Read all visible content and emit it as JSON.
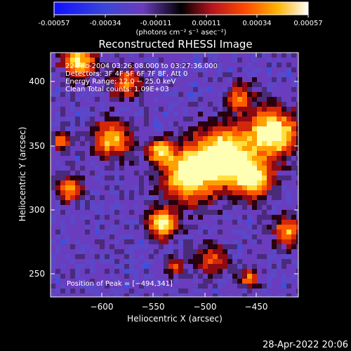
{
  "colorbar": {
    "ticks": [
      "-0.00057",
      "-0.00034",
      "-0.00011",
      "0.00011",
      "0.00034",
      "0.00057"
    ],
    "units": "(photons cm⁻² s⁻¹ asec⁻²)"
  },
  "plot": {
    "title": "Reconstructed RHESSI Image",
    "xlabel": "Heliocentric X (arcsec)",
    "ylabel": "Heliocentric Y (arcsec)",
    "xticks": [
      "−600",
      "−550",
      "−500",
      "−450"
    ],
    "yticks": [
      "400",
      "350",
      "300",
      "250"
    ],
    "annotations": [
      "22-Feb-2004 03:26:08.000 to 03:27:36.000",
      "Detectors: 3F 4F 5F 6F 7F 8F, Att 0",
      "Energy Range: 12.0 − 25.0 keV",
      "Clean     Total counts: 1.09E+03"
    ],
    "peak": "Position of Peak = [−494,341]"
  },
  "footer": {
    "timestamp": "28-Apr-2022 20:06"
  },
  "colors": {
    "low": "#1414ff",
    "mid_low": "#6a3cc6",
    "zero": "#000000",
    "mid_high": "#c81e00",
    "high": "#ffa000",
    "max": "#ffffff"
  }
}
